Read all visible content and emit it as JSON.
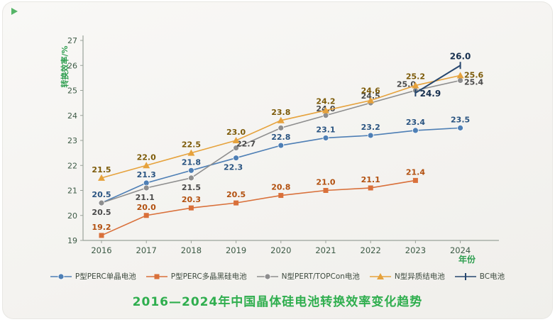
{
  "chart_data": {
    "type": "line",
    "title": "2016—2024年中国晶体硅电池转换效率变化趋势",
    "xlabel": "年份",
    "ylabel": "转换效率/%",
    "x": [
      2016,
      2017,
      2018,
      2019,
      2020,
      2021,
      2022,
      2023,
      2024
    ],
    "ylim": [
      19,
      27
    ],
    "ytick_step": 1,
    "grid": false,
    "legend_position": "bottom",
    "axis_color": "#9aa39a",
    "tick_label_color": "#3c5a45",
    "axis_title_color": "#2e9e4f",
    "series": [
      {
        "name": "P型PERC单晶电池",
        "marker": "circle",
        "color": "#4e7fb5",
        "label_color": "#2a5481",
        "values": [
          20.5,
          21.3,
          21.8,
          22.3,
          22.8,
          23.1,
          23.2,
          23.4,
          23.5
        ],
        "labels": [
          "20.5",
          "21.3",
          "21.8",
          "22.3",
          "22.8",
          "23.1",
          "23.2",
          "23.4",
          "23.5"
        ],
        "label_pos": [
          [
            0,
            -8
          ],
          [
            0,
            -8
          ],
          [
            0,
            -8
          ],
          [
            -4,
            17
          ],
          [
            0,
            -8
          ],
          [
            0,
            -8
          ],
          [
            0,
            -8
          ],
          [
            0,
            -8
          ],
          [
            0,
            -8
          ]
        ]
      },
      {
        "name": "P型PERC多晶黑硅电池",
        "marker": "square",
        "color": "#d9703a",
        "label_color": "#b2500f",
        "values": [
          19.2,
          20.0,
          20.3,
          20.5,
          20.8,
          21.0,
          21.1,
          21.4,
          null
        ],
        "labels": [
          "19.2",
          "20.0",
          "20.3",
          "20.5",
          "20.8",
          "21.0",
          "21.1",
          "21.4",
          ""
        ],
        "label_pos": [
          [
            0,
            -8
          ],
          [
            0,
            -8
          ],
          [
            0,
            -8
          ],
          [
            0,
            -8
          ],
          [
            0,
            -8
          ],
          [
            0,
            -8
          ],
          [
            0,
            -8
          ],
          [
            0,
            -8
          ],
          [
            0,
            0
          ]
        ]
      },
      {
        "name": "N型PERT/TOPCon电池",
        "marker": "circle",
        "color": "#8e8e8e",
        "label_color": "#4a4a4a",
        "values": [
          20.5,
          21.1,
          21.5,
          22.7,
          23.5,
          24.0,
          24.5,
          25.0,
          25.4
        ],
        "labels": [
          "20.5",
          "21.1",
          "21.5",
          "22.7",
          "",
          "24.0",
          "24.5",
          "25.0",
          "25.4"
        ],
        "label_pos": [
          [
            0,
            17
          ],
          [
            -2,
            17
          ],
          [
            0,
            17
          ],
          [
            14,
            -2
          ],
          [
            0,
            0
          ],
          [
            0,
            -6
          ],
          [
            0,
            -6
          ],
          [
            -13,
            -5
          ],
          [
            19,
            6
          ]
        ]
      },
      {
        "name": "N型异质结电池",
        "marker": "triangle",
        "color": "#e6a23c",
        "label_color": "#7c5a08",
        "values": [
          21.5,
          22.0,
          22.5,
          23.0,
          23.8,
          24.2,
          24.6,
          25.2,
          25.6
        ],
        "labels": [
          "21.5",
          "22.0",
          "22.5",
          "23.0",
          "23.8",
          "24.2",
          "24.6",
          "25.2",
          "25.6"
        ],
        "label_pos": [
          [
            0,
            -8
          ],
          [
            0,
            -8
          ],
          [
            0,
            -8
          ],
          [
            0,
            -8
          ],
          [
            0,
            -8
          ],
          [
            0,
            -9
          ],
          [
            0,
            -10
          ],
          [
            0,
            -9
          ],
          [
            19,
            3
          ]
        ]
      },
      {
        "name": "BC电池",
        "marker": "tick",
        "color": "#27476e",
        "label_color": "#17304f",
        "label_bold": true,
        "values": [
          null,
          null,
          null,
          null,
          null,
          null,
          null,
          24.9,
          26.0
        ],
        "labels": [
          "",
          "",
          "",
          "",
          "",
          "",
          "",
          "24.9",
          "26.0"
        ],
        "label_pos": [
          [
            0,
            0
          ],
          [
            0,
            0
          ],
          [
            0,
            0
          ],
          [
            0,
            0
          ],
          [
            0,
            0
          ],
          [
            0,
            0
          ],
          [
            0,
            0
          ],
          [
            21,
            5
          ],
          [
            0,
            -9
          ]
        ]
      }
    ]
  }
}
